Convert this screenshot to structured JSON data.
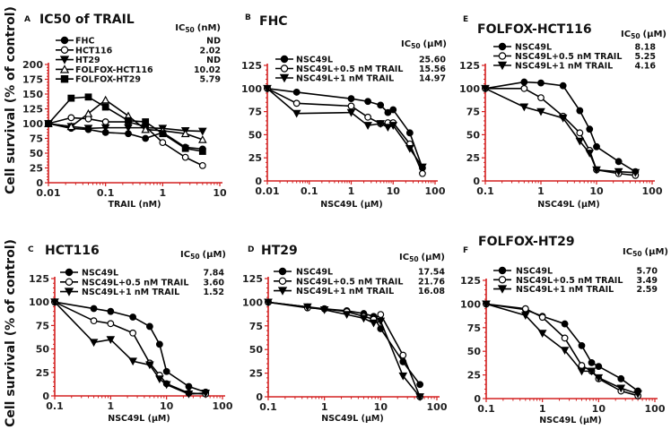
{
  "colors": {
    "axis": "#d42020",
    "data": "#000000"
  },
  "y_label": "Cell survival (% of control)",
  "chart_data": [
    {
      "id": "A",
      "type": "line",
      "letter": "A",
      "title": "IC50 of TRAIL",
      "ic_label": "IC",
      "ic_sub": "50",
      "ic_unit": "(nM)",
      "xlabel": "TRAIL (nM)",
      "ylabel": "Cell survival (% of control)",
      "xscale": "log",
      "xlim": [
        0.01,
        10
      ],
      "ylim": [
        0,
        200
      ],
      "yticks": [
        0,
        25,
        50,
        75,
        100,
        125,
        150,
        175,
        200
      ],
      "xticks": [
        "0.01",
        "0.1",
        "1",
        "10"
      ],
      "x": [
        0.01,
        0.025,
        0.05,
        0.1,
        0.25,
        0.5,
        1,
        2.5,
        5
      ],
      "series": [
        {
          "name": "FHC",
          "marker": "filled-circle",
          "ic50": "ND",
          "values": [
            100,
            92,
            90,
            85,
            83,
            75,
            85,
            60,
            57
          ]
        },
        {
          "name": "HCT116",
          "marker": "open-circle",
          "ic50": "2.02",
          "values": [
            100,
            110,
            108,
            103,
            103,
            95,
            68,
            43,
            29
          ]
        },
        {
          "name": "HT29",
          "marker": "filled-triangle-down",
          "ic50": "ND",
          "values": [
            100,
            95,
            92,
            93,
            93,
            93,
            92,
            88,
            87
          ]
        },
        {
          "name": "FOLFOX-HCT116",
          "marker": "open-triangle-up",
          "ic50": "10.02",
          "values": [
            100,
            95,
            117,
            140,
            113,
            90,
            88,
            83,
            73
          ]
        },
        {
          "name": "FOLFOX-HT29",
          "marker": "filled-square",
          "ic50": "5.79",
          "values": [
            100,
            143,
            145,
            128,
            105,
            103,
            83,
            58,
            53
          ]
        }
      ]
    },
    {
      "id": "B",
      "type": "line",
      "letter": "B",
      "title": "FHC",
      "ic_label": "IC",
      "ic_sub": "50",
      "ic_unit": "(μM)",
      "xlabel": "NSC49L (μM)",
      "ylabel": "",
      "xscale": "log",
      "xlim": [
        0.01,
        100
      ],
      "ylim": [
        0,
        125
      ],
      "yticks": [
        0,
        25,
        50,
        75,
        100,
        125
      ],
      "xticks": [
        "0.01",
        "0.1",
        "1",
        "10",
        "100"
      ],
      "x": [
        0.01,
        0.05,
        1,
        2.5,
        5,
        7.5,
        10,
        25,
        50
      ],
      "series": [
        {
          "name": "NSC49L",
          "marker": "filled-circle",
          "ic50": "25.60",
          "values": [
            100,
            96,
            89,
            86,
            82,
            74,
            77,
            52,
            14
          ]
        },
        {
          "name": "NSC49L+0.5 nM TRAIL",
          "marker": "open-circle",
          "ic50": "15.56",
          "values": [
            100,
            84,
            81,
            69,
            62,
            63,
            63,
            40,
            8
          ]
        },
        {
          "name": "NSC49L+1 nM TRAIL",
          "marker": "filled-triangle-down",
          "ic50": "14.97",
          "values": [
            100,
            73,
            74,
            60,
            62,
            58,
            60,
            35,
            15
          ]
        }
      ]
    },
    {
      "id": "E",
      "type": "line",
      "letter": "E",
      "title": "FOLFOX-HCT116",
      "ic_label": "IC",
      "ic_sub": "50",
      "ic_unit": "(μM)",
      "xlabel": "NSC49L (μM)",
      "ylabel": "",
      "xscale": "log",
      "xlim": [
        0.1,
        100
      ],
      "ylim": [
        0,
        125
      ],
      "yticks": [
        0,
        25,
        50,
        75,
        100,
        125
      ],
      "xticks": [
        "0.1",
        "1",
        "10",
        "100"
      ],
      "x": [
        0.1,
        0.5,
        1,
        2.5,
        5,
        7.5,
        10,
        25,
        50
      ],
      "series": [
        {
          "name": "NSC49L",
          "marker": "filled-circle",
          "ic50": "8.18",
          "values": [
            100,
            107,
            106,
            103,
            76,
            56,
            37,
            21,
            10
          ]
        },
        {
          "name": "NSC49L+0.5 nM TRAIL",
          "marker": "open-circle",
          "ic50": "5.25",
          "values": [
            100,
            100,
            90,
            70,
            52,
            33,
            12,
            8,
            6
          ]
        },
        {
          "name": "NSC49L+1 nM TRAIL",
          "marker": "filled-triangle-down",
          "ic50": "4.16",
          "values": [
            100,
            80,
            75,
            68,
            43,
            30,
            12,
            10,
            9
          ]
        }
      ]
    },
    {
      "id": "C",
      "type": "line",
      "letter": "C",
      "title": "HCT116",
      "ic_label": "IC",
      "ic_sub": "50",
      "ic_unit": "(μM)",
      "xlabel": "NSC49L (μM)",
      "ylabel": "Cell survival (% of control)",
      "xscale": "log",
      "xlim": [
        0.1,
        100
      ],
      "ylim": [
        0,
        125
      ],
      "yticks": [
        0,
        25,
        50,
        75,
        100,
        125
      ],
      "xticks": [
        "0.1",
        "1",
        "10",
        "100"
      ],
      "x": [
        0.1,
        0.5,
        1,
        2.5,
        5,
        7.5,
        10,
        25,
        50
      ],
      "series": [
        {
          "name": "NSC49L",
          "marker": "filled-circle",
          "ic50": "7.84",
          "values": [
            100,
            93,
            90,
            84,
            74,
            55,
            26,
            10,
            4
          ]
        },
        {
          "name": "NSC49L+0.5 nM TRAIL",
          "marker": "open-circle",
          "ic50": "3.60",
          "values": [
            100,
            80,
            77,
            67,
            35,
            22,
            13,
            3,
            2
          ]
        },
        {
          "name": "NSC49L+1 nM TRAIL",
          "marker": "filled-triangle-down",
          "ic50": "1.52",
          "values": [
            100,
            57,
            60,
            37,
            33,
            18,
            12,
            2,
            3
          ]
        }
      ]
    },
    {
      "id": "D",
      "type": "line",
      "letter": "D",
      "title": "HT29",
      "ic_label": "IC",
      "ic_sub": "50",
      "ic_unit": "(μM)",
      "xlabel": "NSC49L (μM)",
      "ylabel": "",
      "xscale": "log",
      "xlim": [
        0.1,
        100
      ],
      "ylim": [
        0,
        125
      ],
      "yticks": [
        0,
        25,
        50,
        75,
        100,
        125
      ],
      "xticks": [
        "0.1",
        "1",
        "10",
        "100"
      ],
      "x": [
        0.1,
        0.5,
        1,
        2.5,
        5,
        7.5,
        10,
        25,
        50
      ],
      "series": [
        {
          "name": "NSC49L",
          "marker": "filled-circle",
          "ic50": "17.54",
          "values": [
            100,
            95,
            93,
            91,
            88,
            85,
            72,
            37,
            13
          ]
        },
        {
          "name": "NSC49L+0.5 nM TRAIL",
          "marker": "open-circle",
          "ic50": "21.76",
          "values": [
            100,
            94,
            93,
            90,
            85,
            82,
            87,
            44,
            0
          ]
        },
        {
          "name": "NSC49L+1 nM TRAIL",
          "marker": "filled-triangle-down",
          "ic50": "16.08",
          "values": [
            100,
            95,
            92,
            87,
            83,
            78,
            80,
            22,
            0
          ]
        }
      ]
    },
    {
      "id": "F",
      "type": "line",
      "letter": "F",
      "title": "FOLFOX-HT29",
      "ic_label": "IC",
      "ic_sub": "50",
      "ic_unit": "(μM)",
      "xlabel": "NSC49L (μM)",
      "ylabel": "",
      "xscale": "log",
      "xlim": [
        0.1,
        100
      ],
      "ylim": [
        0,
        125
      ],
      "yticks": [
        0,
        25,
        50,
        75,
        100,
        125
      ],
      "xticks": [
        "0.1",
        "1",
        "10",
        "100"
      ],
      "x": [
        0.1,
        0.5,
        1,
        2.5,
        5,
        7.5,
        10,
        25,
        50
      ],
      "series": [
        {
          "name": "NSC49L",
          "marker": "filled-circle",
          "ic50": "5.70",
          "values": [
            100,
            94,
            87,
            79,
            56,
            38,
            34,
            21,
            8
          ]
        },
        {
          "name": "NSC49L+0.5 nM TRAIL",
          "marker": "open-circle",
          "ic50": "3.49",
          "values": [
            100,
            95,
            86,
            64,
            35,
            29,
            21,
            8,
            3
          ]
        },
        {
          "name": "NSC49L+1 nM TRAIL",
          "marker": "filled-triangle-down",
          "ic50": "2.59",
          "values": [
            100,
            88,
            69,
            51,
            29,
            29,
            22,
            11,
            5
          ]
        }
      ]
    }
  ]
}
